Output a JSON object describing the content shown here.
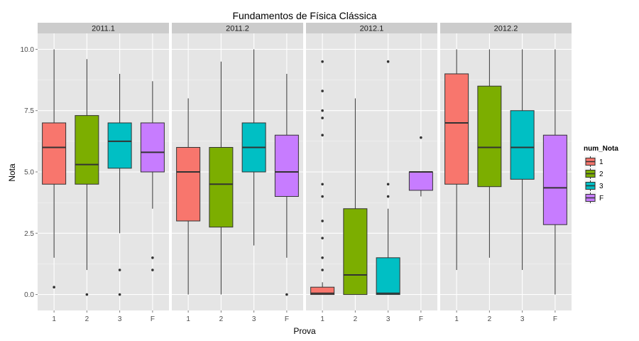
{
  "chart_data": {
    "type": "boxplot",
    "title": "Fundamentos de Física Clássica",
    "xlabel": "Prova",
    "ylabel": "Nota",
    "ylim": [
      -0.65,
      10.65
    ],
    "yticks": [
      0.0,
      2.5,
      5.0,
      7.5,
      10.0
    ],
    "ytick_labels": [
      "0.0",
      "2.5",
      "5.0",
      "7.5",
      "10.0"
    ],
    "categories": [
      "1",
      "2",
      "3",
      "F"
    ],
    "grid": true,
    "legend": {
      "title": "num_Nota",
      "position": "right",
      "entries": [
        "1",
        "2",
        "3",
        "F"
      ]
    },
    "colors": {
      "1": "#f8766d",
      "2": "#7cae00",
      "3": "#00bfc4",
      "F": "#c77cff"
    },
    "panels": [
      {
        "label": "2011.1",
        "boxes": [
          {
            "category": "1",
            "low": 1.5,
            "q1": 4.5,
            "median": 6.0,
            "q3": 7.0,
            "high": 10.0,
            "outliers": [
              0.3
            ]
          },
          {
            "category": "2",
            "low": 1.0,
            "q1": 4.5,
            "median": 5.3,
            "q3": 7.3,
            "high": 9.6,
            "outliers": [
              0.0
            ]
          },
          {
            "category": "3",
            "low": 2.5,
            "q1": 5.15,
            "median": 6.25,
            "q3": 7.0,
            "high": 9.0,
            "outliers": [
              1.0,
              0.0
            ]
          },
          {
            "category": "F",
            "low": 3.5,
            "q1": 5.0,
            "median": 5.8,
            "q3": 7.0,
            "high": 8.7,
            "outliers": [
              1.5,
              1.0
            ]
          }
        ]
      },
      {
        "label": "2011.2",
        "boxes": [
          {
            "category": "1",
            "low": 0.0,
            "q1": 3.0,
            "median": 5.0,
            "q3": 6.0,
            "high": 8.0,
            "outliers": []
          },
          {
            "category": "2",
            "low": 0.0,
            "q1": 2.75,
            "median": 4.5,
            "q3": 6.0,
            "high": 9.5,
            "outliers": []
          },
          {
            "category": "3",
            "low": 2.0,
            "q1": 5.0,
            "median": 6.0,
            "q3": 7.0,
            "high": 10.0,
            "outliers": []
          },
          {
            "category": "F",
            "low": 1.5,
            "q1": 4.0,
            "median": 5.0,
            "q3": 6.5,
            "high": 9.0,
            "outliers": [
              0.0
            ]
          }
        ]
      },
      {
        "label": "2012.1",
        "boxes": [
          {
            "category": "1",
            "low": 0.0,
            "q1": 0.0,
            "median": 0.05,
            "q3": 0.3,
            "high": 0.5,
            "outliers": [
              9.5,
              8.3,
              7.5,
              7.2,
              6.5,
              4.5,
              4.0,
              3.0,
              2.3,
              1.5,
              1.0
            ]
          },
          {
            "category": "2",
            "low": 0.0,
            "q1": 0.0,
            "median": 0.8,
            "q3": 3.5,
            "high": 8.0,
            "outliers": []
          },
          {
            "category": "3",
            "low": 0.0,
            "q1": 0.0,
            "median": 0.05,
            "q3": 1.5,
            "high": 3.5,
            "outliers": [
              9.5,
              4.5,
              4.0
            ]
          },
          {
            "category": "F",
            "low": 4.0,
            "q1": 4.25,
            "median": 5.0,
            "q3": 5.0,
            "high": 5.0,
            "outliers": [
              6.4
            ]
          }
        ]
      },
      {
        "label": "2012.2",
        "boxes": [
          {
            "category": "1",
            "low": 1.0,
            "q1": 4.5,
            "median": 7.0,
            "q3": 9.0,
            "high": 10.0,
            "outliers": []
          },
          {
            "category": "2",
            "low": 1.5,
            "q1": 4.4,
            "median": 6.0,
            "q3": 8.5,
            "high": 10.0,
            "outliers": []
          },
          {
            "category": "3",
            "low": 1.0,
            "q1": 4.7,
            "median": 6.0,
            "q3": 7.5,
            "high": 10.0,
            "outliers": []
          },
          {
            "category": "F",
            "low": 0.0,
            "q1": 2.85,
            "median": 4.35,
            "q3": 6.5,
            "high": 10.0,
            "outliers": []
          }
        ]
      }
    ]
  }
}
